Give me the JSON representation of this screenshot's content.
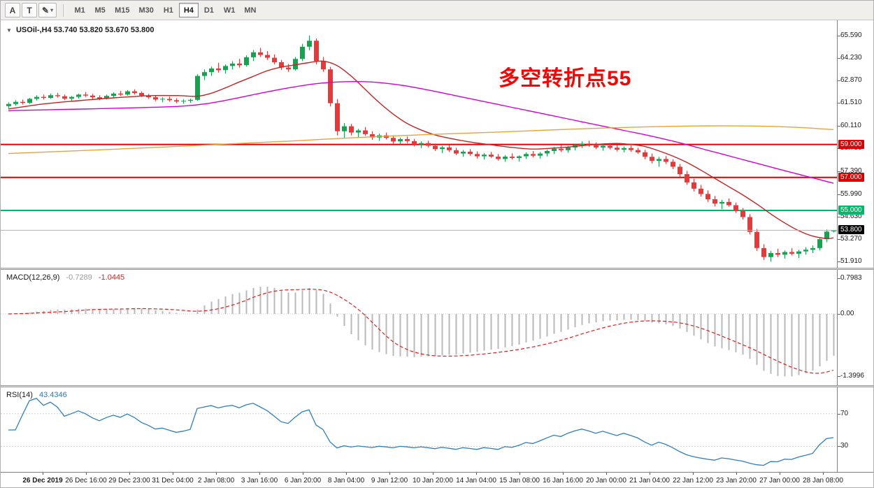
{
  "toolbar": {
    "tool_buttons": [
      {
        "label": "A"
      },
      {
        "label": "T"
      },
      {
        "label": "✎",
        "caret": "▾"
      }
    ],
    "timeframes": [
      "M1",
      "M5",
      "M15",
      "M30",
      "H1",
      "H4",
      "D1",
      "W1",
      "MN"
    ],
    "active_timeframe": "H4"
  },
  "chart": {
    "dropdown_icon": "▼",
    "symbol_title": "USOil-,H4",
    "ohlc_text": "53.740 53.820 53.670 53.800",
    "annotation": {
      "text": "多空转折点55",
      "color": "#FF0000"
    },
    "price_axis_labels": [
      "65.590",
      "64.230",
      "62.870",
      "61.510",
      "60.110",
      "58.750",
      "57.390",
      "55.990",
      "54.630",
      "53.270",
      "51.910"
    ],
    "hlines": [
      {
        "price": 59.0,
        "tag": "59.000",
        "color": "#DD0000"
      },
      {
        "price": 57.0,
        "tag": "57.000",
        "color": "#DD0000"
      },
      {
        "price": 55.0,
        "tag": "55.000",
        "color": "#00B869"
      }
    ],
    "current_price": {
      "price": 53.8,
      "tag": "53.800",
      "line_color": "#b3b3b3",
      "tag_bg": "#000000"
    },
    "colors": {
      "up": "#0FA64E",
      "down": "#EE3636"
    }
  },
  "chart_data": {
    "type": "candlestick",
    "symbol": "USOil-",
    "timeframe": "H4",
    "candles": [
      [
        61.32,
        61.55,
        61.2,
        61.45
      ],
      [
        61.45,
        61.68,
        61.35,
        61.58
      ],
      [
        61.58,
        61.72,
        61.42,
        61.52
      ],
      [
        61.52,
        61.82,
        61.46,
        61.76
      ],
      [
        61.76,
        61.98,
        61.66,
        61.88
      ],
      [
        61.88,
        62.02,
        61.72,
        61.82
      ],
      [
        61.82,
        62.08,
        61.76,
        61.98
      ],
      [
        61.98,
        62.12,
        61.84,
        61.92
      ],
      [
        61.92,
        62.02,
        61.68,
        61.78
      ],
      [
        61.78,
        61.94,
        61.62,
        61.88
      ],
      [
        61.88,
        62.08,
        61.78,
        62.02
      ],
      [
        62.02,
        62.18,
        61.88,
        61.96
      ],
      [
        61.96,
        62.06,
        61.76,
        61.86
      ],
      [
        61.86,
        61.98,
        61.68,
        61.78
      ],
      [
        61.78,
        62.02,
        61.72,
        61.94
      ],
      [
        61.94,
        62.16,
        61.84,
        62.08
      ],
      [
        62.08,
        62.24,
        61.94,
        62.02
      ],
      [
        62.02,
        62.3,
        61.96,
        62.22
      ],
      [
        62.22,
        62.34,
        62.02,
        62.12
      ],
      [
        62.12,
        62.22,
        61.88,
        61.96
      ],
      [
        61.96,
        62.06,
        61.76,
        61.86
      ],
      [
        61.86,
        61.96,
        61.62,
        61.72
      ],
      [
        61.72,
        61.86,
        61.56,
        61.76
      ],
      [
        61.76,
        61.9,
        61.6,
        61.68
      ],
      [
        61.68,
        61.8,
        61.5,
        61.6
      ],
      [
        61.6,
        61.74,
        61.46,
        61.64
      ],
      [
        61.64,
        61.78,
        61.52,
        61.7
      ],
      [
        61.7,
        63.25,
        61.64,
        63.15
      ],
      [
        63.15,
        63.55,
        62.9,
        63.38
      ],
      [
        63.38,
        63.72,
        63.15,
        63.6
      ],
      [
        63.6,
        63.95,
        63.35,
        63.5
      ],
      [
        63.5,
        63.85,
        63.3,
        63.75
      ],
      [
        63.75,
        64.05,
        63.55,
        63.9
      ],
      [
        63.9,
        64.18,
        63.65,
        63.8
      ],
      [
        63.8,
        64.4,
        63.72,
        64.28
      ],
      [
        64.28,
        64.72,
        64.05,
        64.58
      ],
      [
        64.58,
        64.85,
        64.3,
        64.42
      ],
      [
        64.42,
        64.66,
        64.12,
        64.25
      ],
      [
        64.25,
        64.45,
        63.85,
        63.98
      ],
      [
        63.98,
        64.12,
        63.52,
        63.66
      ],
      [
        63.66,
        63.88,
        63.4,
        63.55
      ],
      [
        63.55,
        64.3,
        63.48,
        64.18
      ],
      [
        64.18,
        65.1,
        64.05,
        64.92
      ],
      [
        64.92,
        65.6,
        64.7,
        65.28
      ],
      [
        65.28,
        65.42,
        63.85,
        64.05
      ],
      [
        64.05,
        64.3,
        63.4,
        63.55
      ],
      [
        63.55,
        63.7,
        61.3,
        61.5
      ],
      [
        61.5,
        61.75,
        59.55,
        59.8
      ],
      [
        59.8,
        60.3,
        59.35,
        60.1
      ],
      [
        60.1,
        60.25,
        59.55,
        59.72
      ],
      [
        59.72,
        59.95,
        59.4,
        59.85
      ],
      [
        59.85,
        60.05,
        59.52,
        59.62
      ],
      [
        59.62,
        59.8,
        59.28,
        59.42
      ],
      [
        59.42,
        59.66,
        59.22,
        59.55
      ],
      [
        59.55,
        59.72,
        59.3,
        59.4
      ],
      [
        59.4,
        59.55,
        59.05,
        59.18
      ],
      [
        59.18,
        59.42,
        59.02,
        59.32
      ],
      [
        59.32,
        59.48,
        59.08,
        59.2
      ],
      [
        59.2,
        59.34,
        58.88,
        59.0
      ],
      [
        59.0,
        59.18,
        58.78,
        59.08
      ],
      [
        59.08,
        59.22,
        58.82,
        58.92
      ],
      [
        58.92,
        59.06,
        58.6,
        58.72
      ],
      [
        58.72,
        58.92,
        58.48,
        58.82
      ],
      [
        58.82,
        58.96,
        58.55,
        58.65
      ],
      [
        58.65,
        58.8,
        58.35,
        58.45
      ],
      [
        58.45,
        58.66,
        58.25,
        58.56
      ],
      [
        58.56,
        58.72,
        58.32,
        58.42
      ],
      [
        58.42,
        58.58,
        58.15,
        58.28
      ],
      [
        58.28,
        58.48,
        58.08,
        58.38
      ],
      [
        58.38,
        58.55,
        58.18,
        58.26
      ],
      [
        58.26,
        58.42,
        58.02,
        58.12
      ],
      [
        58.12,
        58.35,
        57.95,
        58.26
      ],
      [
        58.26,
        58.46,
        58.08,
        58.18
      ],
      [
        58.18,
        58.34,
        57.98,
        58.28
      ],
      [
        58.28,
        58.52,
        58.12,
        58.42
      ],
      [
        58.42,
        58.6,
        58.22,
        58.32
      ],
      [
        58.32,
        58.55,
        58.15,
        58.45
      ],
      [
        58.45,
        58.7,
        58.28,
        58.6
      ],
      [
        58.6,
        58.85,
        58.42,
        58.74
      ],
      [
        58.74,
        58.95,
        58.55,
        58.65
      ],
      [
        58.65,
        58.92,
        58.5,
        58.82
      ],
      [
        58.82,
        59.05,
        58.65,
        58.95
      ],
      [
        58.95,
        59.18,
        58.78,
        59.05
      ],
      [
        59.05,
        59.22,
        58.85,
        58.95
      ],
      [
        58.95,
        59.12,
        58.72,
        58.82
      ],
      [
        58.82,
        59.02,
        58.62,
        58.92
      ],
      [
        58.92,
        59.08,
        58.7,
        58.8
      ],
      [
        58.8,
        58.96,
        58.58,
        58.68
      ],
      [
        58.68,
        58.88,
        58.52,
        58.78
      ],
      [
        58.78,
        58.94,
        58.56,
        58.66
      ],
      [
        58.66,
        58.8,
        58.42,
        58.52
      ],
      [
        58.52,
        58.68,
        58.1,
        58.25
      ],
      [
        58.25,
        58.45,
        57.85,
        58.0
      ],
      [
        58.0,
        58.25,
        57.65,
        58.12
      ],
      [
        58.12,
        58.3,
        57.82,
        57.95
      ],
      [
        57.95,
        58.1,
        57.5,
        57.65
      ],
      [
        57.65,
        57.82,
        57.05,
        57.2
      ],
      [
        57.2,
        57.4,
        56.55,
        56.7
      ],
      [
        56.7,
        56.92,
        56.15,
        56.32
      ],
      [
        56.32,
        56.55,
        55.85,
        56.0
      ],
      [
        56.0,
        56.22,
        55.52,
        55.68
      ],
      [
        55.68,
        55.88,
        55.25,
        55.42
      ],
      [
        55.42,
        55.65,
        55.08,
        55.52
      ],
      [
        55.52,
        55.72,
        55.22,
        55.32
      ],
      [
        55.32,
        55.48,
        54.85,
        54.96
      ],
      [
        54.96,
        55.15,
        54.45,
        54.6
      ],
      [
        54.6,
        54.78,
        53.55,
        53.7
      ],
      [
        53.7,
        53.88,
        52.55,
        52.72
      ],
      [
        52.72,
        52.95,
        52.0,
        52.18
      ],
      [
        52.18,
        52.55,
        51.9,
        52.42
      ],
      [
        52.42,
        52.68,
        52.18,
        52.32
      ],
      [
        52.32,
        52.58,
        52.08,
        52.48
      ],
      [
        52.48,
        52.72,
        52.28,
        52.38
      ],
      [
        52.38,
        52.62,
        52.12,
        52.52
      ],
      [
        52.52,
        52.78,
        52.32,
        52.62
      ],
      [
        52.62,
        52.88,
        52.42,
        52.72
      ],
      [
        52.72,
        53.35,
        52.58,
        53.26
      ],
      [
        53.26,
        53.85,
        53.08,
        53.72
      ],
      [
        53.74,
        53.82,
        53.67,
        53.8
      ]
    ],
    "ma_lines": [
      {
        "name": "ma-fast",
        "color": "#C62222",
        "points": [
          [
            0,
            61.15
          ],
          [
            5,
            61.45
          ],
          [
            10,
            61.65
          ],
          [
            15,
            61.82
          ],
          [
            20,
            61.95
          ],
          [
            24,
            61.96
          ],
          [
            27,
            61.92
          ],
          [
            29,
            62.1
          ],
          [
            31,
            62.42
          ],
          [
            33,
            62.78
          ],
          [
            35,
            63.12
          ],
          [
            37,
            63.46
          ],
          [
            39,
            63.68
          ],
          [
            41,
            63.82
          ],
          [
            43,
            63.96
          ],
          [
            45,
            64.05
          ],
          [
            47,
            63.78
          ],
          [
            49,
            63.15
          ],
          [
            51,
            62.35
          ],
          [
            53,
            61.55
          ],
          [
            55,
            60.85
          ],
          [
            57,
            60.28
          ],
          [
            59,
            59.88
          ],
          [
            61,
            59.58
          ],
          [
            63,
            59.38
          ],
          [
            66,
            59.15
          ],
          [
            69,
            58.98
          ],
          [
            72,
            58.82
          ],
          [
            75,
            58.72
          ],
          [
            78,
            58.78
          ],
          [
            81,
            58.88
          ],
          [
            84,
            59.0
          ],
          [
            87,
            59.06
          ],
          [
            89,
            59.0
          ],
          [
            91,
            58.88
          ],
          [
            93,
            58.62
          ],
          [
            95,
            58.3
          ],
          [
            97,
            57.92
          ],
          [
            99,
            57.45
          ],
          [
            101,
            56.95
          ],
          [
            103,
            56.45
          ],
          [
            105,
            55.95
          ],
          [
            107,
            55.4
          ],
          [
            109,
            54.8
          ],
          [
            111,
            54.25
          ],
          [
            113,
            53.78
          ],
          [
            115,
            53.45
          ],
          [
            117,
            53.3
          ],
          [
            118,
            53.34
          ]
        ]
      },
      {
        "name": "ma-mid",
        "color": "#D400D4",
        "points": [
          [
            0,
            61.05
          ],
          [
            8,
            61.12
          ],
          [
            16,
            61.2
          ],
          [
            24,
            61.3
          ],
          [
            28,
            61.45
          ],
          [
            32,
            61.75
          ],
          [
            36,
            62.1
          ],
          [
            40,
            62.42
          ],
          [
            44,
            62.68
          ],
          [
            48,
            62.8
          ],
          [
            52,
            62.78
          ],
          [
            56,
            62.6
          ],
          [
            60,
            62.3
          ],
          [
            64,
            61.95
          ],
          [
            68,
            61.6
          ],
          [
            72,
            61.25
          ],
          [
            76,
            60.9
          ],
          [
            80,
            60.55
          ],
          [
            84,
            60.2
          ],
          [
            88,
            59.85
          ],
          [
            92,
            59.5
          ],
          [
            96,
            59.1
          ],
          [
            100,
            58.65
          ],
          [
            104,
            58.2
          ],
          [
            108,
            57.75
          ],
          [
            112,
            57.3
          ],
          [
            115,
            56.98
          ],
          [
            118,
            56.65
          ]
        ]
      },
      {
        "name": "ma-slow",
        "color": "#E8A33D",
        "points": [
          [
            0,
            58.45
          ],
          [
            10,
            58.62
          ],
          [
            20,
            58.8
          ],
          [
            30,
            59.0
          ],
          [
            40,
            59.2
          ],
          [
            50,
            59.42
          ],
          [
            60,
            59.6
          ],
          [
            70,
            59.75
          ],
          [
            80,
            59.92
          ],
          [
            90,
            60.05
          ],
          [
            98,
            60.12
          ],
          [
            106,
            60.12
          ],
          [
            112,
            60.05
          ],
          [
            118,
            59.9
          ]
        ]
      }
    ]
  },
  "macd": {
    "name": "MACD(12,26,9)",
    "value_main": "-0.7289",
    "value_signal": "-1.0445",
    "axis_labels": [
      {
        "text": "0.7983",
        "value": 0.7983
      },
      {
        "text": "0.00",
        "value": 0
      },
      {
        "text": "-1.3996",
        "value": -1.3996
      }
    ],
    "range": {
      "max": 0.7983,
      "min": -1.3996
    },
    "colors": {
      "histogram": "#b9b9b9",
      "signal": "#E02020"
    }
  },
  "rsi": {
    "name": "RSI(14)",
    "value": "43.4346",
    "levels": [
      70,
      30
    ],
    "axis_labels": [
      {
        "text": "70",
        "value": 70
      },
      {
        "text": "30",
        "value": 30
      }
    ],
    "color": "#2E7FBE"
  },
  "time_axis": {
    "labels": [
      "26 Dec 2019",
      "26 Dec 16:00",
      "29 Dec 23:00",
      "31 Dec 04:00",
      "2 Jan 08:00",
      "3 Jan 16:00",
      "6 Jan 20:00",
      "8 Jan 04:00",
      "9 Jan 12:00",
      "10 Jan 20:00",
      "14 Jan 04:00",
      "15 Jan 08:00",
      "16 Jan 16:00",
      "20 Jan 00:00",
      "21 Jan 04:00",
      "22 Jan 12:00",
      "23 Jan 20:00",
      "27 Jan 00:00",
      "28 Jan 08:00"
    ]
  }
}
